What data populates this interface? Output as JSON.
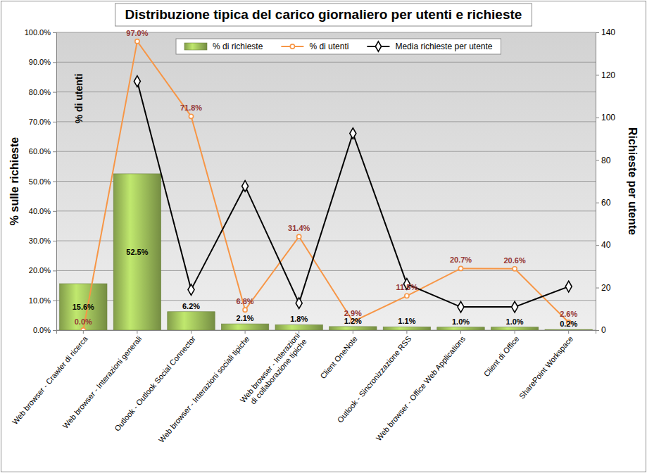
{
  "chart_data": {
    "type": "bar",
    "title": "Distribuzione tipica del carico giornaliero per utenti e richieste",
    "ylabel": "% sulle richieste",
    "y2label": "Richieste per utente",
    "annotations": [
      "% di utenti"
    ],
    "categories": [
      "Web browser - Crawler di ricerca",
      "Web browser - Interazioni generali",
      "Outlook - Outlook Social Connector",
      "Web browser - Interazioni sociali tipiche",
      "Web browser - Interazioni di collaborazione tipiche",
      "Client OneNote",
      "Outlook - Sincronizzazione RSS",
      "Web browser - Office Web Applications",
      "Client di Office",
      "SharePoint Workspace"
    ],
    "ylim": [
      0,
      100
    ],
    "yticks": [
      {
        "value": 0,
        "label": "0.0%"
      },
      {
        "value": 10,
        "label": "10.0%"
      },
      {
        "value": 20,
        "label": "20.0%"
      },
      {
        "value": 30,
        "label": "30.0%"
      },
      {
        "value": 40,
        "label": "40.0%"
      },
      {
        "value": 50,
        "label": "50.0%"
      },
      {
        "value": 60,
        "label": "60.0%"
      },
      {
        "value": 70,
        "label": "70.0%"
      },
      {
        "value": 80,
        "label": "80.0%"
      },
      {
        "value": 90,
        "label": "90.0%"
      },
      {
        "value": 100,
        "label": "100.0%"
      }
    ],
    "y2lim": [
      0,
      140
    ],
    "y2ticks": [
      0,
      20,
      40,
      60,
      80,
      100,
      120,
      140
    ],
    "grid": true,
    "legend": "top",
    "series": [
      {
        "name": "% di richieste",
        "type": "bar",
        "color": "#9bbb59",
        "values": [
          15.6,
          52.5,
          6.2,
          2.1,
          1.8,
          1.2,
          1.1,
          1.0,
          1.0,
          0.2
        ],
        "data_labels": true,
        "value_labels": [
          "15.6%",
          "52.5%",
          "6.2%",
          "2.1%",
          "1.8%",
          "1.2%",
          "1.1%",
          "1.0%",
          "1.0%",
          "0.2%"
        ]
      },
      {
        "name": "% di utenti",
        "type": "line",
        "color": "#f79646",
        "marker": "circle",
        "values": [
          0.0,
          97.0,
          71.8,
          6.8,
          31.4,
          2.9,
          11.5,
          20.7,
          20.6,
          2.6
        ],
        "data_labels": true,
        "value_labels": [
          "0.0%",
          "97.0%",
          "71.8%",
          "6.8%",
          "31.4%",
          "2.9%",
          "11.5%",
          "20.7%",
          "20.6%",
          "2.6%"
        ]
      },
      {
        "name": "Media richieste per utente",
        "type": "line",
        "axis": "y2",
        "color": "#000000",
        "marker": "diamond",
        "values": [
          null,
          117,
          19,
          67.7,
          12.7,
          92.5,
          21.7,
          10.9,
          10.9,
          20.5
        ],
        "data_labels": false
      }
    ]
  }
}
